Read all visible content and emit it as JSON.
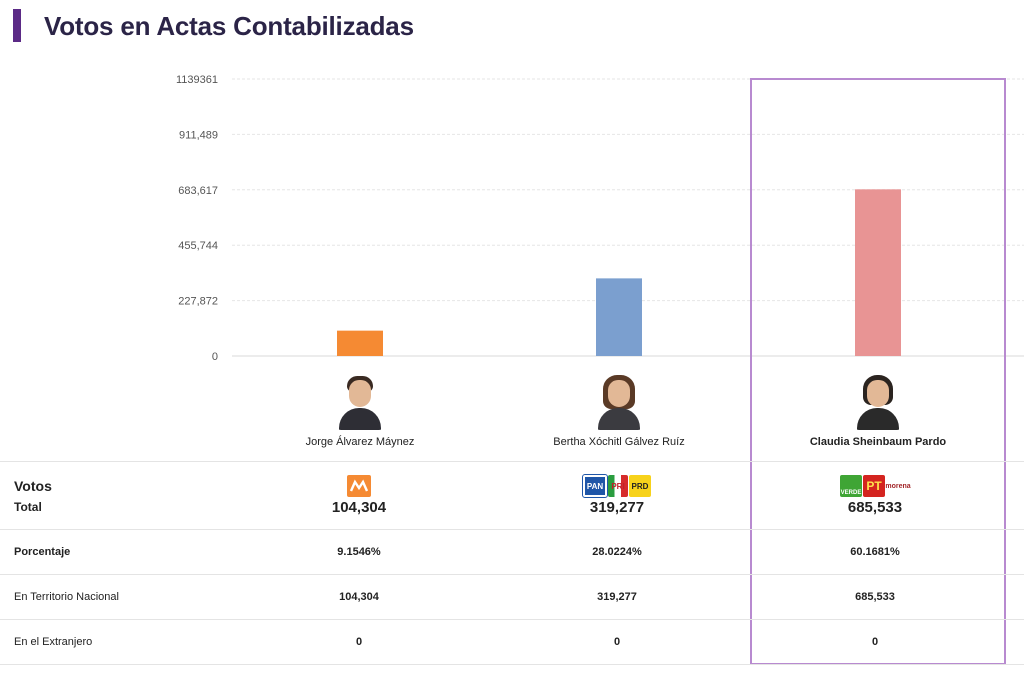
{
  "page": {
    "title": "Votos en Actas Contabilizadas"
  },
  "chart_data": {
    "type": "bar",
    "categories": [
      "Jorge Álvarez Máynez",
      "Bertha Xóchitl Gálvez Ruíz",
      "Claudia Sheinbaum Pardo"
    ],
    "values": [
      104304,
      319277,
      685533
    ],
    "colors": [
      "#f58a33",
      "#7b9fcf",
      "#e89494"
    ],
    "yticks": [
      "0",
      "227,872",
      "455,744",
      "683,617",
      "911,489",
      "1139361"
    ],
    "ylim": [
      0,
      1139361
    ],
    "grid": true,
    "highlighted": "Claudia Sheinbaum Pardo"
  },
  "candidates": [
    {
      "name": "Jorge Álvarez Máynez",
      "photo": "portrait-man",
      "parties": [
        "MC"
      ],
      "total": "104,304",
      "percentage": "9.1546%",
      "national": "104,304",
      "abroad": "0"
    },
    {
      "name": "Bertha Xóchitl Gálvez Ruíz",
      "photo": "portrait-woman",
      "parties": [
        "PAN",
        "PRI",
        "PRD"
      ],
      "total": "319,277",
      "percentage": "28.0224%",
      "national": "319,277",
      "abroad": "0"
    },
    {
      "name": "Claudia Sheinbaum Pardo",
      "photo": "portrait-woman",
      "parties": [
        "VERDE",
        "PT",
        "morena"
      ],
      "total": "685,533",
      "percentage": "60.1681%",
      "national": "685,533",
      "abroad": "0"
    }
  ],
  "rows": {
    "votes_label": "Votos",
    "total_label": "Total",
    "percentage_label": "Porcentaje",
    "national_label": "En Territorio Nacional",
    "abroad_label": "En el Extranjero"
  }
}
